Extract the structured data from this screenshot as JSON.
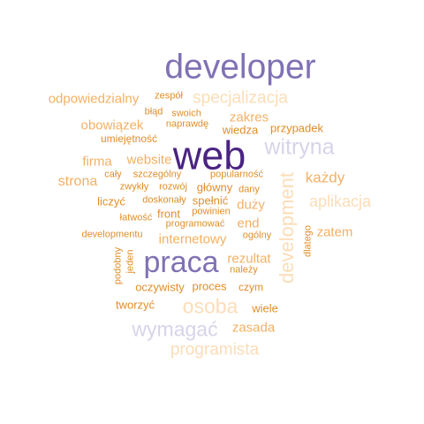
{
  "palette": {
    "dark_purple": "#4a2383",
    "purple": "#8071b4",
    "lavender": "#d7d4e9",
    "dark_orange": "#e08e28",
    "orange": "#f3b064",
    "peach": "#fbddb8"
  },
  "words": [
    {
      "text": "developer",
      "color": "purple"
    },
    {
      "text": "zespół",
      "color": "dark_orange"
    },
    {
      "text": "odpowiedzialny",
      "color": "orange"
    },
    {
      "text": "specjalizacja",
      "color": "peach"
    },
    {
      "text": "błąd",
      "color": "dark_orange"
    },
    {
      "text": "swoich",
      "color": "dark_orange"
    },
    {
      "text": "naprawdę",
      "color": "dark_orange"
    },
    {
      "text": "zakres",
      "color": "orange"
    },
    {
      "text": "obowiązek",
      "color": "orange"
    },
    {
      "text": "wiedza",
      "color": "dark_orange"
    },
    {
      "text": "przypadek",
      "color": "dark_orange"
    },
    {
      "text": "umiejętność",
      "color": "dark_orange"
    },
    {
      "text": "web",
      "color": "dark_purple"
    },
    {
      "text": "witryna",
      "color": "lavender"
    },
    {
      "text": "firma",
      "color": "orange"
    },
    {
      "text": "website",
      "color": "orange"
    },
    {
      "text": "każdy",
      "color": "orange"
    },
    {
      "text": "cały",
      "color": "dark_orange"
    },
    {
      "text": "szczególny",
      "color": "dark_orange"
    },
    {
      "text": "popularność",
      "color": "dark_orange"
    },
    {
      "text": "strona",
      "color": "orange"
    },
    {
      "text": "zwykły",
      "color": "dark_orange"
    },
    {
      "text": "rozwój",
      "color": "dark_orange"
    },
    {
      "text": "główny",
      "color": "dark_orange"
    },
    {
      "text": "dany",
      "color": "dark_orange"
    },
    {
      "text": "liczyć",
      "color": "dark_orange"
    },
    {
      "text": "doskonały",
      "color": "dark_orange"
    },
    {
      "text": "spełnić",
      "color": "dark_orange"
    },
    {
      "text": "duży",
      "color": "orange"
    },
    {
      "text": "aplikacja",
      "color": "peach"
    },
    {
      "text": "łatwość",
      "color": "dark_orange"
    },
    {
      "text": "front",
      "color": "dark_orange"
    },
    {
      "text": "powinien",
      "color": "dark_orange"
    },
    {
      "text": "programować",
      "color": "dark_orange"
    },
    {
      "text": "end",
      "color": "orange"
    },
    {
      "text": "developmentu",
      "color": "dark_orange"
    },
    {
      "text": "internetowy",
      "color": "orange"
    },
    {
      "text": "ogólny",
      "color": "dark_orange"
    },
    {
      "text": "zatem",
      "color": "orange"
    },
    {
      "text": "praca",
      "color": "purple"
    },
    {
      "text": "rezultat",
      "color": "orange"
    },
    {
      "text": "należy",
      "color": "dark_orange"
    },
    {
      "text": "oczywisty",
      "color": "dark_orange"
    },
    {
      "text": "proces",
      "color": "dark_orange"
    },
    {
      "text": "czym",
      "color": "dark_orange"
    },
    {
      "text": "tworzyć",
      "color": "dark_orange"
    },
    {
      "text": "osoba",
      "color": "peach"
    },
    {
      "text": "wiele",
      "color": "dark_orange"
    },
    {
      "text": "wymagać",
      "color": "lavender"
    },
    {
      "text": "zasada",
      "color": "orange"
    },
    {
      "text": "programista",
      "color": "peach"
    },
    {
      "text": "development",
      "color": "peach"
    },
    {
      "text": "podobny",
      "color": "dark_orange"
    },
    {
      "text": "jeden",
      "color": "dark_orange"
    },
    {
      "text": "dlatego",
      "color": "dark_orange"
    }
  ]
}
